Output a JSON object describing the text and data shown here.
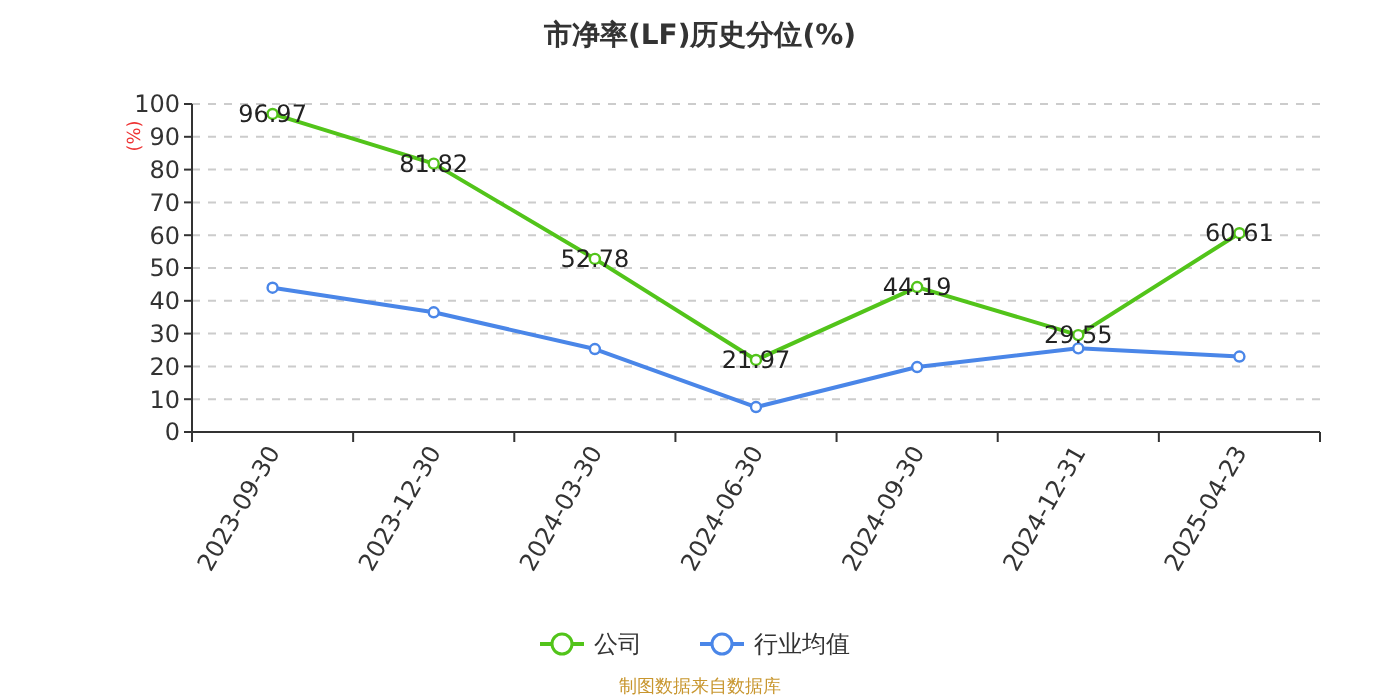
{
  "chart_data": {
    "type": "line",
    "title": "市净率(LF)历史分位(%)",
    "ylabel": "(%)",
    "categories": [
      "2023-09-30",
      "2023-12-30",
      "2024-03-30",
      "2024-06-30",
      "2024-09-30",
      "2024-12-31",
      "2025-04-23"
    ],
    "series": [
      {
        "name": "公司",
        "color": "#52c41a",
        "values": [
          96.97,
          81.82,
          52.78,
          21.97,
          44.19,
          29.55,
          60.61
        ],
        "value_labels": [
          "96.97",
          "81.82",
          "52.78",
          "21.97",
          "44.19",
          "29.55",
          "60.61"
        ]
      },
      {
        "name": "行业均值",
        "color": "#4a86e8",
        "values": [
          44,
          36.5,
          25.3,
          7.6,
          19.8,
          25.5,
          23
        ]
      }
    ],
    "ylim": [
      0,
      100
    ],
    "yticks": [
      0,
      10,
      20,
      30,
      40,
      50,
      60,
      70,
      80,
      90,
      100
    ],
    "grid": "y",
    "legend": "bottom",
    "marker": "circle",
    "line_style": "solid",
    "annotations": [
      "制图数据来自数据库"
    ]
  }
}
